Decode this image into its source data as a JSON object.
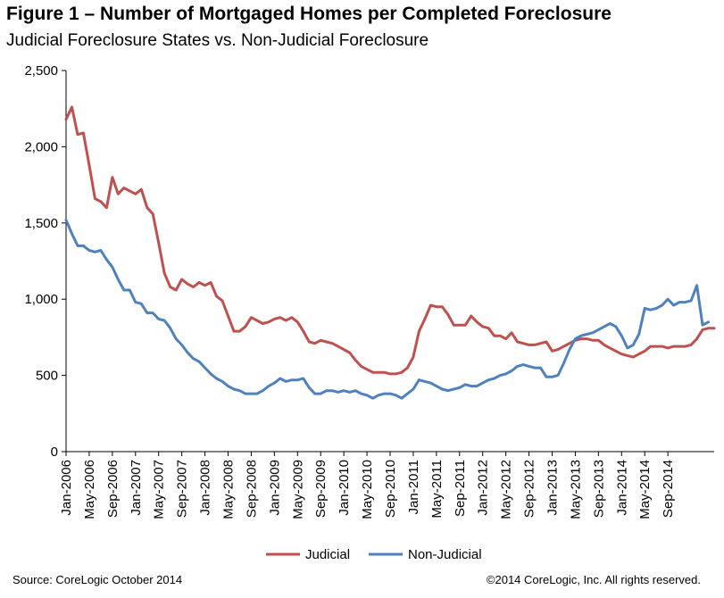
{
  "title": "Figure 1 – Number of Mortgaged Homes per Completed Foreclosure",
  "subtitle": "Judicial Foreclosure States vs. Non-Judicial Foreclosure",
  "footer": {
    "source": "Source: CoreLogic  October 2014",
    "copyright": "©2014 CoreLogic, Inc. All rights reserved."
  },
  "chart_data": {
    "type": "line",
    "title": "Figure 1 – Number of Mortgaged Homes per Completed Foreclosure",
    "subtitle": "Judicial Foreclosure States vs. Non-Judicial Foreclosure",
    "xlabel": "",
    "ylabel": "",
    "ylim": [
      0,
      2500
    ],
    "y_ticks": [
      0,
      500,
      1000,
      1500,
      2000,
      2500
    ],
    "y_tick_labels": [
      "0",
      "500",
      "1,000",
      "1,500",
      "2,000",
      "2,500"
    ],
    "x_ticks": [
      "Jan-2006",
      "May-2006",
      "Sep-2006",
      "Jan-2007",
      "May-2007",
      "Sep-2007",
      "Jan-2008",
      "May-2008",
      "Sep-2008",
      "Jan-2009",
      "May-2009",
      "Sep-2009",
      "Jan-2010",
      "May-2010",
      "Sep-2010",
      "Jan-2011",
      "May-2011",
      "Sep-2011",
      "Jan-2012",
      "May-2012",
      "Sep-2012",
      "Jan-2013",
      "May-2013",
      "Sep-2013",
      "Jan-2014",
      "May-2014",
      "Sep-2014"
    ],
    "x_start": "Jan-2006",
    "x_end": "Sep-2014",
    "grid": false,
    "legend_position": "bottom",
    "series": [
      {
        "name": "Judicial",
        "color": "#c0504d",
        "values": [
          2180,
          2260,
          2080,
          2090,
          1880,
          1660,
          1640,
          1600,
          1800,
          1690,
          1730,
          1710,
          1690,
          1720,
          1600,
          1560,
          1370,
          1170,
          1080,
          1060,
          1130,
          1100,
          1080,
          1110,
          1090,
          1110,
          1020,
          990,
          890,
          790,
          790,
          820,
          880,
          860,
          840,
          850,
          870,
          880,
          860,
          880,
          850,
          790,
          720,
          710,
          730,
          720,
          710,
          690,
          670,
          650,
          600,
          560,
          540,
          520,
          520,
          520,
          510,
          510,
          520,
          550,
          620,
          790,
          870,
          960,
          950,
          950,
          900,
          830,
          830,
          830,
          890,
          850,
          820,
          810,
          760,
          760,
          740,
          780,
          720,
          710,
          700,
          700,
          710,
          720,
          660,
          670,
          690,
          710,
          730,
          740,
          740,
          730,
          730,
          700,
          680,
          660,
          640,
          630,
          620,
          640,
          660,
          690,
          690,
          690,
          680,
          690,
          690,
          690,
          700,
          740,
          800,
          810,
          810
        ]
      },
      {
        "name": "Non-Judicial",
        "color": "#4f81bd",
        "values": [
          1520,
          1430,
          1350,
          1350,
          1320,
          1310,
          1320,
          1260,
          1210,
          1130,
          1060,
          1060,
          980,
          970,
          910,
          910,
          870,
          860,
          810,
          740,
          700,
          650,
          610,
          590,
          550,
          510,
          480,
          460,
          430,
          410,
          400,
          380,
          380,
          380,
          400,
          430,
          450,
          480,
          460,
          470,
          470,
          480,
          420,
          380,
          380,
          400,
          400,
          390,
          400,
          390,
          400,
          380,
          370,
          350,
          370,
          380,
          380,
          370,
          350,
          380,
          410,
          470,
          460,
          450,
          430,
          410,
          400,
          410,
          420,
          440,
          430,
          430,
          450,
          470,
          480,
          500,
          510,
          530,
          560,
          570,
          560,
          550,
          550,
          490,
          490,
          500,
          580,
          670,
          740,
          760,
          770,
          780,
          800,
          820,
          840,
          820,
          760,
          680,
          700,
          770,
          940,
          930,
          940,
          960,
          1000,
          960,
          980,
          980,
          990,
          1090,
          830,
          850
        ]
      }
    ]
  }
}
